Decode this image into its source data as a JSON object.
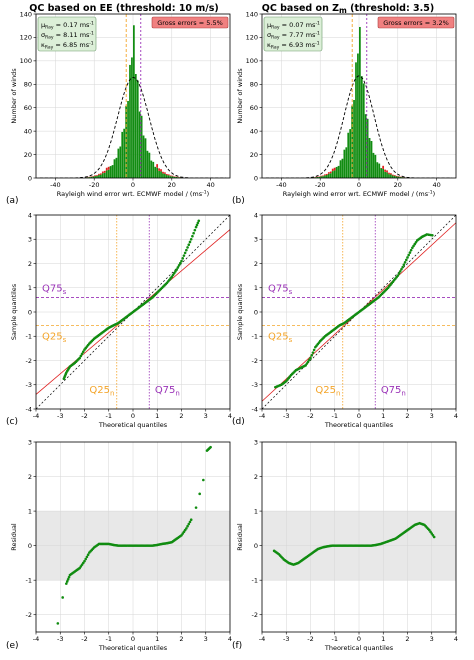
{
  "colors": {
    "hist_fill": "#118c11",
    "gross_error": "#e02020",
    "gauss_curve": "#000000",
    "q25_line": "#f4a52a",
    "q75_line": "#9b34b8",
    "qq_points": "#118c11",
    "fit_line": "#e02020",
    "identity_line": "#000000",
    "residual_band": "#e8e8e8",
    "stats_box_bg": "#dcefd8",
    "gross_box_bg": "#f08080"
  },
  "columns": [
    {
      "title": "QC based on EE (threshold: 10 m/s)",
      "title_main": "QC based on EE (threshold: 10 m/s)",
      "title_sub": ""
    },
    {
      "title": "QC based on Zm (threshold: 3.5)",
      "title_main": "QC based on Z",
      "title_sub": "m",
      "title_tail": " (threshold: 3.5)"
    }
  ],
  "chart_data": [
    {
      "panel_label": "(a)",
      "type": "bar",
      "subtype": "histogram",
      "xlabel": "Rayleigh wind error wrt. ECMWF model / (ms",
      "xlabel_sup": "-1",
      "xlabel_end": ")",
      "ylabel": "Number of winds",
      "xlim": [
        -50,
        50
      ],
      "ylim": [
        0,
        140
      ],
      "xticks": [
        "-40",
        "-20",
        "0",
        "20",
        "40"
      ],
      "yticks": [
        "0",
        "20",
        "40",
        "60",
        "80",
        "100",
        "120",
        "140"
      ],
      "stats": [
        {
          "sym": "μ",
          "sub": "Ray",
          "val": " = 0.17 ms",
          "sup": "-1"
        },
        {
          "sym": "σ",
          "sub": "Ray",
          "val": " = 8.11 ms",
          "sup": "-1"
        },
        {
          "sym": "κ",
          "sub": "Ray",
          "val": " = 6.85 ms",
          "sup": "-1"
        }
      ],
      "gross_errors": "Gross errors = 5.5%",
      "q25": -3.5,
      "q75": 4.0,
      "mu": 0.17,
      "sigma": 8.11,
      "peak": 130,
      "grid": true
    },
    {
      "panel_label": "(b)",
      "type": "bar",
      "subtype": "histogram",
      "xlabel": "Rayleigh wind error wrt. ECMWF model / (ms",
      "xlabel_sup": "-1",
      "xlabel_end": ")",
      "ylabel": "Number of winds",
      "xlim": [
        -50,
        50
      ],
      "ylim": [
        0,
        140
      ],
      "xticks": [
        "-40",
        "-20",
        "0",
        "20",
        "40"
      ],
      "yticks": [
        "0",
        "20",
        "40",
        "60",
        "80",
        "100",
        "120",
        "140"
      ],
      "stats": [
        {
          "sym": "μ",
          "sub": "Ray",
          "val": " = 0.07 ms",
          "sup": "-1"
        },
        {
          "sym": "σ",
          "sub": "Ray",
          "val": " = 7.77 ms",
          "sup": "-1"
        },
        {
          "sym": "κ",
          "sub": "Ray",
          "val": " = 6.93 ms",
          "sup": "-1"
        }
      ],
      "gross_errors": "Gross errors = 3.2%",
      "q25": -3.5,
      "q75": 4.0,
      "mu": 0.07,
      "sigma": 7.77,
      "peak": 132,
      "grid": true
    },
    {
      "panel_label": "(c)",
      "type": "scatter",
      "subtype": "qq-plot",
      "xlabel": "Theoretical quantiles",
      "ylabel": "Sample quantiles",
      "xlim": [
        -4,
        4
      ],
      "ylim": [
        -4,
        4
      ],
      "xticks": [
        "-4",
        "-3",
        "-2",
        "-1",
        "0",
        "1",
        "2",
        "3",
        "4"
      ],
      "yticks": [
        "-4",
        "-3",
        "-2",
        "-1",
        "0",
        "1",
        "2",
        "3",
        "4"
      ],
      "q25n": -0.67,
      "q75n": 0.67,
      "q75s": 0.6,
      "q25s": -0.55,
      "fit_slope": 0.85,
      "labels": {
        "q75s": "Q75",
        "q75s_sub": "s",
        "q25s": "Q25",
        "q25s_sub": "s",
        "q25n": "Q25",
        "q25n_sub": "n",
        "q75n": "Q75",
        "q75n_sub": "n"
      },
      "points": [
        [
          -2.85,
          -2.75
        ],
        [
          -2.75,
          -2.5
        ],
        [
          -2.6,
          -2.25
        ],
        [
          -2.4,
          -2.1
        ],
        [
          -2.2,
          -1.9
        ],
        [
          -2.0,
          -1.55
        ],
        [
          -1.8,
          -1.3
        ],
        [
          -1.6,
          -1.1
        ],
        [
          -1.4,
          -0.95
        ],
        [
          -1.2,
          -0.8
        ],
        [
          -1.0,
          -0.65
        ],
        [
          -0.8,
          -0.55
        ],
        [
          -0.6,
          -0.45
        ],
        [
          -0.4,
          -0.3
        ],
        [
          -0.2,
          -0.15
        ],
        [
          0.0,
          0.0
        ],
        [
          0.2,
          0.15
        ],
        [
          0.4,
          0.3
        ],
        [
          0.6,
          0.45
        ],
        [
          0.8,
          0.6
        ],
        [
          1.0,
          0.8
        ],
        [
          1.2,
          1.0
        ],
        [
          1.4,
          1.2
        ],
        [
          1.6,
          1.45
        ],
        [
          1.8,
          1.75
        ],
        [
          2.0,
          2.1
        ],
        [
          2.2,
          2.55
        ],
        [
          2.4,
          3.0
        ],
        [
          2.6,
          3.5
        ],
        [
          2.75,
          3.85
        ]
      ],
      "grid": true
    },
    {
      "panel_label": "(d)",
      "type": "scatter",
      "subtype": "qq-plot",
      "xlabel": "Theoretical quantiles",
      "ylabel": "Sample quantiles",
      "xlim": [
        -4,
        4
      ],
      "ylim": [
        -4,
        4
      ],
      "xticks": [
        "-4",
        "-3",
        "-2",
        "-1",
        "0",
        "1",
        "2",
        "3",
        "4"
      ],
      "yticks": [
        "-4",
        "-3",
        "-2",
        "-1",
        "0",
        "1",
        "2",
        "3",
        "4"
      ],
      "q25n": -0.67,
      "q75n": 0.67,
      "q75s": 0.6,
      "q25s": -0.55,
      "fit_slope": 0.92,
      "labels": {
        "q75s": "Q75",
        "q75s_sub": "s",
        "q25s": "Q25",
        "q25s_sub": "s",
        "q25n": "Q25",
        "q25n_sub": "n",
        "q75n": "Q75",
        "q75n_sub": "n"
      },
      "points": [
        [
          -3.45,
          -3.1
        ],
        [
          -3.2,
          -3.0
        ],
        [
          -3.0,
          -2.85
        ],
        [
          -2.8,
          -2.6
        ],
        [
          -2.6,
          -2.4
        ],
        [
          -2.4,
          -2.3
        ],
        [
          -2.2,
          -2.2
        ],
        [
          -2.0,
          -1.9
        ],
        [
          -1.8,
          -1.45
        ],
        [
          -1.6,
          -1.2
        ],
        [
          -1.4,
          -1.0
        ],
        [
          -1.2,
          -0.85
        ],
        [
          -1.0,
          -0.7
        ],
        [
          -0.8,
          -0.55
        ],
        [
          -0.6,
          -0.45
        ],
        [
          -0.4,
          -0.3
        ],
        [
          -0.2,
          -0.15
        ],
        [
          0.0,
          0.0
        ],
        [
          0.2,
          0.15
        ],
        [
          0.4,
          0.3
        ],
        [
          0.6,
          0.45
        ],
        [
          0.8,
          0.6
        ],
        [
          1.0,
          0.8
        ],
        [
          1.2,
          1.0
        ],
        [
          1.4,
          1.25
        ],
        [
          1.6,
          1.5
        ],
        [
          1.8,
          1.85
        ],
        [
          2.0,
          2.25
        ],
        [
          2.2,
          2.65
        ],
        [
          2.4,
          2.95
        ],
        [
          2.6,
          3.1
        ],
        [
          2.8,
          3.2
        ],
        [
          3.1,
          3.15
        ]
      ],
      "grid": true
    },
    {
      "panel_label": "(e)",
      "type": "scatter",
      "subtype": "residual",
      "xlabel": "Theoretical quantiles",
      "ylabel": "Residual",
      "xlim": [
        -4,
        4
      ],
      "ylim": [
        -2.5,
        3
      ],
      "xticks": [
        "-4",
        "-3",
        "-2",
        "-1",
        "0",
        "1",
        "2",
        "3",
        "4"
      ],
      "yticks": [
        "-2",
        "-1",
        "0",
        "1",
        "2",
        "3"
      ],
      "band": [
        -1,
        1
      ],
      "points": [
        [
          -3.1,
          -2.25
        ],
        [
          -2.9,
          -1.5
        ],
        [
          -2.75,
          -1.1
        ],
        [
          -2.6,
          -0.85
        ],
        [
          -2.4,
          -0.75
        ],
        [
          -2.2,
          -0.65
        ],
        [
          -2.0,
          -0.45
        ],
        [
          -1.8,
          -0.2
        ],
        [
          -1.6,
          -0.05
        ],
        [
          -1.4,
          0.05
        ],
        [
          -1.2,
          0.05
        ],
        [
          -1.0,
          0.05
        ],
        [
          -0.8,
          0.02
        ],
        [
          -0.6,
          0.0
        ],
        [
          -0.4,
          0.0
        ],
        [
          -0.2,
          0.0
        ],
        [
          0.0,
          0.0
        ],
        [
          0.2,
          0.0
        ],
        [
          0.4,
          0.0
        ],
        [
          0.6,
          0.0
        ],
        [
          0.8,
          0.0
        ],
        [
          1.0,
          0.02
        ],
        [
          1.2,
          0.05
        ],
        [
          1.4,
          0.07
        ],
        [
          1.6,
          0.1
        ],
        [
          1.8,
          0.2
        ],
        [
          2.0,
          0.3
        ],
        [
          2.2,
          0.5
        ],
        [
          2.4,
          0.75
        ],
        [
          2.6,
          1.1
        ],
        [
          2.75,
          1.5
        ],
        [
          2.9,
          1.9
        ],
        [
          3.05,
          2.75
        ],
        [
          3.2,
          2.85
        ]
      ],
      "grid": true
    },
    {
      "panel_label": "(f)",
      "type": "scatter",
      "subtype": "residual",
      "xlabel": "Theoretical quantiles",
      "ylabel": "Residual",
      "xlim": [
        -4,
        4
      ],
      "ylim": [
        -2.5,
        3
      ],
      "xticks": [
        "-4",
        "-3",
        "-2",
        "-1",
        "0",
        "1",
        "2",
        "3",
        "4"
      ],
      "yticks": [
        "-2",
        "-1",
        "0",
        "1",
        "2",
        "3"
      ],
      "band": [
        -1,
        1
      ],
      "points": [
        [
          -3.5,
          -0.15
        ],
        [
          -3.3,
          -0.25
        ],
        [
          -3.1,
          -0.4
        ],
        [
          -2.9,
          -0.5
        ],
        [
          -2.7,
          -0.55
        ],
        [
          -2.5,
          -0.5
        ],
        [
          -2.3,
          -0.4
        ],
        [
          -2.1,
          -0.3
        ],
        [
          -1.9,
          -0.2
        ],
        [
          -1.7,
          -0.1
        ],
        [
          -1.5,
          -0.05
        ],
        [
          -1.3,
          -0.02
        ],
        [
          -1.1,
          0.0
        ],
        [
          -0.9,
          0.0
        ],
        [
          -0.7,
          0.0
        ],
        [
          -0.5,
          0.0
        ],
        [
          -0.3,
          0.0
        ],
        [
          -0.1,
          0.0
        ],
        [
          0.1,
          0.0
        ],
        [
          0.3,
          0.0
        ],
        [
          0.5,
          0.0
        ],
        [
          0.7,
          0.02
        ],
        [
          0.9,
          0.05
        ],
        [
          1.1,
          0.1
        ],
        [
          1.3,
          0.15
        ],
        [
          1.5,
          0.2
        ],
        [
          1.7,
          0.3
        ],
        [
          1.9,
          0.4
        ],
        [
          2.1,
          0.5
        ],
        [
          2.3,
          0.6
        ],
        [
          2.5,
          0.65
        ],
        [
          2.7,
          0.6
        ],
        [
          2.9,
          0.45
        ],
        [
          3.1,
          0.25
        ]
      ],
      "grid": true
    }
  ]
}
